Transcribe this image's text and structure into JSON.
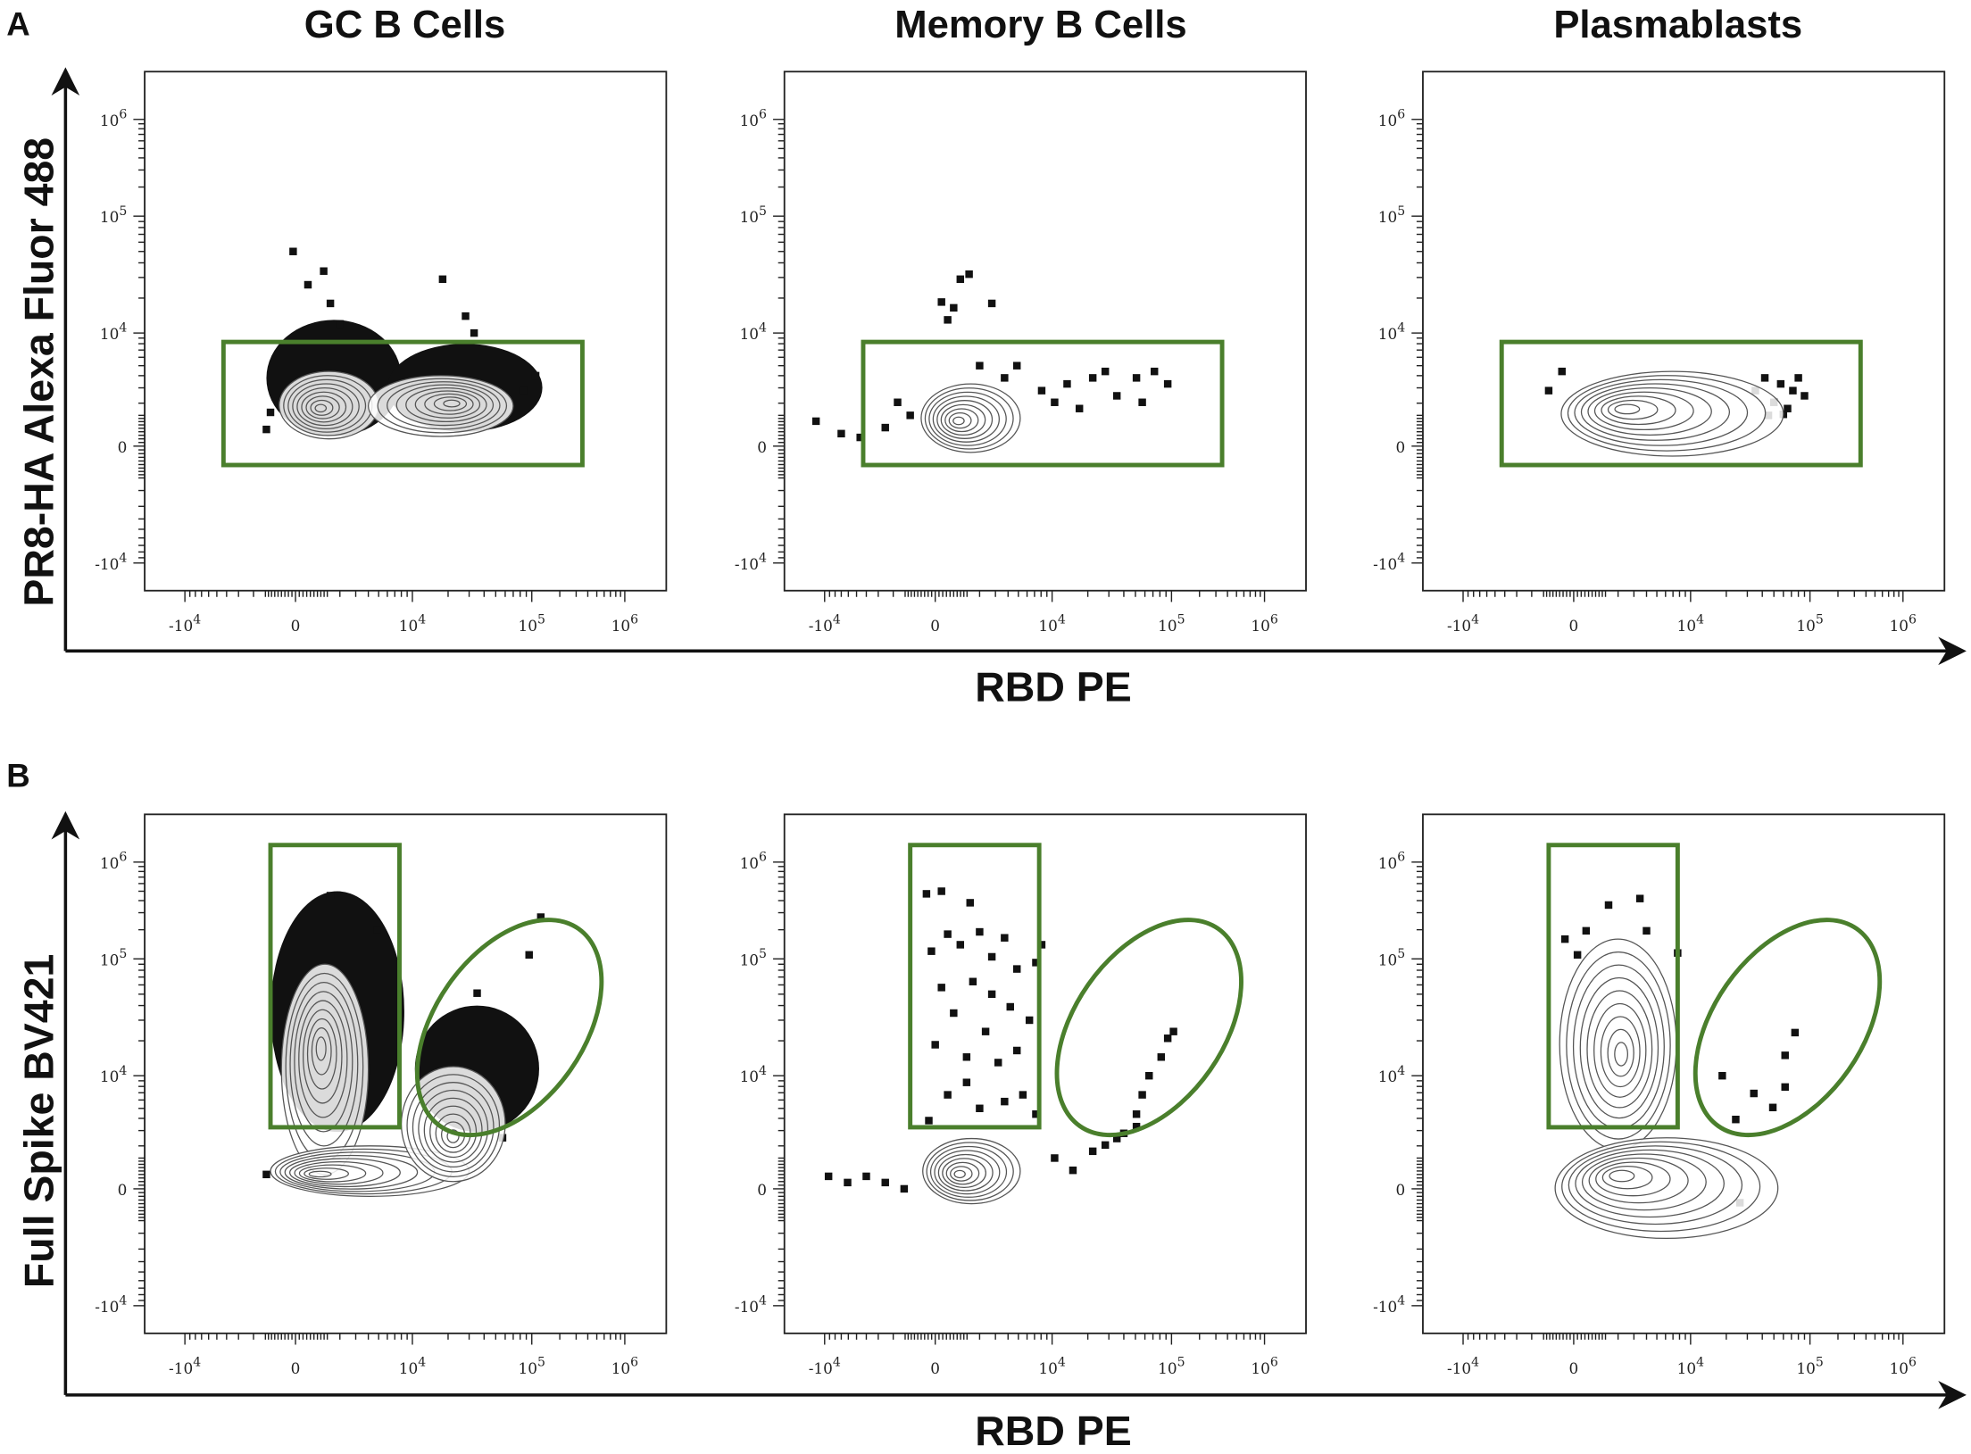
{
  "figure": {
    "panel_letters": [
      "A",
      "B"
    ],
    "column_titles": [
      "GC B Cells",
      "Memory B Cells",
      "Plasmablasts"
    ],
    "row_a_ylabel": "PR8-HA Alexa Fluor 488",
    "row_b_ylabel": "Full Spike BV421",
    "xlabel": "RBD PE",
    "gate_color": "#4a7f2c",
    "contour_color": "#555555",
    "dot_color": "#111111"
  },
  "chart_data": [
    {
      "type": "scatter",
      "subtype": "contour-with-outliers",
      "row": "A",
      "title": "GC B Cells",
      "xlabel": "RBD PE",
      "ylabel": "PR8-HA Alexa Fluor 488",
      "scale": "biexponential",
      "xticks": [
        "-10^4",
        "0",
        "10^4",
        "10^5",
        "10^6"
      ],
      "yticks": [
        "10^6",
        "10^5",
        "10^4",
        "0",
        "-10^4"
      ],
      "gates": [
        {
          "shape": "rectangle",
          "x": [
            -4300,
            350000
          ],
          "y": [
            -770,
            8300
          ]
        }
      ],
      "dense_regions": [
        {
          "x": [
            -1300,
            8000
          ],
          "y": [
            400,
            13000
          ]
        },
        {
          "x": [
            6000,
            130000
          ],
          "y": [
            600,
            8000
          ]
        }
      ],
      "populations": [
        {
          "peak": [
            1000,
            1700
          ],
          "x": [
            -700,
            5000
          ],
          "y": [
            300,
            4400
          ]
        },
        {
          "peak": [
            22000,
            2000
          ],
          "x": [
            4000,
            70000
          ],
          "y": [
            400,
            4000
          ]
        }
      ],
      "points": [
        [
          -100,
          50000
        ],
        [
          1180,
          34000
        ],
        [
          500,
          26000
        ],
        [
          18000,
          29000
        ],
        [
          1500,
          18000
        ],
        [
          28000,
          14000
        ],
        [
          2000,
          12000
        ],
        [
          33000,
          10000
        ],
        [
          110000,
          4000
        ],
        [
          85000,
          2800
        ],
        [
          -1100,
          1500
        ],
        [
          -1300,
          700
        ]
      ]
    },
    {
      "type": "scatter",
      "subtype": "contour-with-outliers",
      "row": "A",
      "title": "Memory B Cells",
      "xlabel": "RBD PE",
      "ylabel": "PR8-HA Alexa Fluor 488",
      "scale": "biexponential",
      "xticks": [
        "-10^4",
        "0",
        "10^4",
        "10^5",
        "10^6"
      ],
      "yticks": [
        "10^6",
        "10^5",
        "10^4",
        "0",
        "-10^4"
      ],
      "gates": [
        {
          "shape": "rectangle",
          "x": [
            -4300,
            350000
          ],
          "y": [
            -770,
            8300
          ]
        }
      ],
      "dense_regions": [],
      "populations": [
        {
          "peak": [
            900,
            1070
          ],
          "x": [
            -600,
            5200
          ],
          "y": [
            -250,
            3300
          ]
        }
      ],
      "points": [
        [
          -12000,
          1070
        ],
        [
          -7000,
          520
        ],
        [
          -4600,
          360
        ],
        [
          -2500,
          780
        ],
        [
          -1750,
          2050
        ],
        [
          -1100,
          1350
        ],
        [
          250,
          18500
        ],
        [
          500,
          13000
        ],
        [
          750,
          16500
        ],
        [
          1040,
          29000
        ],
        [
          1450,
          32000
        ],
        [
          2750,
          18000
        ],
        [
          3700,
          3800
        ],
        [
          4850,
          5000
        ],
        [
          8100,
          2800
        ],
        [
          13400,
          3300
        ],
        [
          22000,
          3800
        ],
        [
          35000,
          2450
        ],
        [
          51000,
          3800
        ],
        [
          72000,
          4400
        ],
        [
          93000,
          3300
        ],
        [
          10500,
          2050
        ],
        [
          17000,
          1700
        ],
        [
          28000,
          4400
        ],
        [
          57000,
          2050
        ],
        [
          2000,
          5000
        ]
      ]
    },
    {
      "type": "scatter",
      "subtype": "contour-with-outliers",
      "row": "A",
      "title": "Plasmablasts",
      "xlabel": "RBD PE",
      "ylabel": "PR8-HA Alexa Fluor 488",
      "scale": "biexponential",
      "xticks": [
        "-10^4",
        "0",
        "10^4",
        "10^5",
        "10^6"
      ],
      "yticks": [
        "10^6",
        "10^5",
        "10^4",
        "0",
        "-10^4"
      ],
      "gates": [
        {
          "shape": "rectangle",
          "x": [
            -4300,
            350000
          ],
          "y": [
            -770,
            8300
          ]
        }
      ],
      "dense_regions": [],
      "populations": [
        {
          "peak": [
            2200,
            1700
          ],
          "x": [
            -530,
            60000
          ],
          "y": [
            -400,
            4400
          ]
        }
      ],
      "points": [
        [
          -1100,
          2800
        ],
        [
          -500,
          4400
        ],
        [
          35000,
          2800
        ],
        [
          42000,
          3800
        ],
        [
          50000,
          2050
        ],
        [
          57000,
          3300
        ],
        [
          65000,
          1700
        ],
        [
          72000,
          2800
        ],
        [
          80000,
          3800
        ],
        [
          90000,
          2450
        ],
        [
          60000,
          1400
        ],
        [
          45000,
          1350
        ]
      ]
    },
    {
      "type": "scatter",
      "subtype": "contour-with-outliers",
      "row": "B",
      "title": "GC B Cells",
      "xlabel": "RBD PE",
      "ylabel": "Full Spike BV421",
      "scale": "biexponential",
      "xticks": [
        "-10^4",
        "0",
        "10^4",
        "10^5",
        "10^6"
      ],
      "yticks": [
        "10^6",
        "10^5",
        "10^4",
        "0",
        "-10^4"
      ],
      "gates": [
        {
          "shape": "rectangle",
          "x": [
            -1100,
            7700
          ],
          "y": [
            3250,
            1500000
          ]
        },
        {
          "shape": "ellipse",
          "center": [
            65000,
            26000
          ],
          "semi_axes_decades": [
            0.63,
            1.02
          ],
          "angle_deg": 35
        }
      ],
      "dense_regions": [
        {
          "x": [
            -1100,
            8500
          ],
          "y": [
            2900,
            500000
          ]
        },
        {
          "x": [
            10500,
            120000
          ],
          "y": [
            2900,
            40000
          ]
        }
      ],
      "populations": [
        {
          "peak": [
            1040,
            18000
          ],
          "x": [
            -600,
            4000
          ],
          "y": [
            600,
            90000
          ]
        },
        {
          "peak": [
            750,
            600
          ],
          "x": [
            -1100,
            30000
          ],
          "y": [
            -300,
            2000
          ]
        },
        {
          "peak": [
            22000,
            2500
          ],
          "x": [
            8000,
            60000
          ],
          "y": [
            300,
            12000
          ]
        }
      ],
      "points": [
        [
          1500,
          450000
        ],
        [
          4850,
          200000
        ],
        [
          125000,
          270000
        ],
        [
          95000,
          110000
        ],
        [
          35000,
          51000
        ],
        [
          57000,
          2500
        ],
        [
          -1300,
          600
        ]
      ]
    },
    {
      "type": "scatter",
      "subtype": "contour-with-outliers",
      "row": "B",
      "title": "Memory B Cells",
      "xlabel": "RBD PE",
      "ylabel": "Full Spike BV421",
      "scale": "biexponential",
      "xticks": [
        "-10^4",
        "0",
        "10^4",
        "10^5",
        "10^6"
      ],
      "yticks": [
        "10^6",
        "10^5",
        "10^4",
        "0",
        "-10^4"
      ],
      "gates": [
        {
          "shape": "rectangle",
          "x": [
            -1100,
            7700
          ],
          "y": [
            3250,
            1500000
          ]
        },
        {
          "shape": "ellipse",
          "center": [
            65000,
            26000
          ],
          "semi_axes_decades": [
            0.63,
            1.02
          ],
          "angle_deg": 35
        }
      ],
      "dense_regions": [],
      "populations": [
        {
          "peak": [
            950,
            600
          ],
          "x": [
            -530,
            5200
          ],
          "y": [
            -600,
            2450
          ]
        }
      ],
      "points": [
        [
          -370,
          470000
        ],
        [
          250,
          500000
        ],
        [
          1500,
          380000
        ],
        [
          500,
          180000
        ],
        [
          -160,
          120000
        ],
        [
          1040,
          140000
        ],
        [
          2000,
          190000
        ],
        [
          3700,
          165000
        ],
        [
          4850,
          82000
        ],
        [
          7200,
          93000
        ],
        [
          250,
          57000
        ],
        [
          1640,
          64000
        ],
        [
          2750,
          50000
        ],
        [
          4200,
          39000
        ],
        [
          750,
          34500
        ],
        [
          2350,
          24000
        ],
        [
          6300,
          30000
        ],
        [
          0,
          18500
        ],
        [
          1330,
          14500
        ],
        [
          3200,
          13000
        ],
        [
          4850,
          16500
        ],
        [
          500,
          6700
        ],
        [
          2000,
          5000
        ],
        [
          3700,
          5800
        ],
        [
          5500,
          6700
        ],
        [
          -270,
          3800
        ],
        [
          7200,
          4400
        ],
        [
          1330,
          8700
        ],
        [
          8100,
          140000
        ],
        [
          2750,
          105000
        ],
        [
          -9200,
          520
        ],
        [
          -6100,
          260
        ],
        [
          -4000,
          520
        ],
        [
          -2500,
          260
        ],
        [
          -1400,
          0
        ],
        [
          10500,
          1350
        ],
        [
          15000,
          780
        ],
        [
          22000,
          1700
        ],
        [
          28000,
          2050
        ],
        [
          40000,
          2800
        ],
        [
          51000,
          4400
        ],
        [
          57000,
          6700
        ],
        [
          65000,
          10000
        ],
        [
          82000,
          14500
        ],
        [
          93000,
          21000
        ],
        [
          105000,
          24000
        ],
        [
          51000,
          3300
        ],
        [
          35000,
          2450
        ]
      ]
    },
    {
      "type": "scatter",
      "subtype": "contour-with-outliers",
      "row": "B",
      "title": "Plasmablasts",
      "xlabel": "RBD PE",
      "ylabel": "Full Spike BV421",
      "scale": "biexponential",
      "xticks": [
        "-10^4",
        "0",
        "10^4",
        "10^5",
        "10^6"
      ],
      "yticks": [
        "10^6",
        "10^5",
        "10^4",
        "0",
        "-10^4"
      ],
      "gates": [
        {
          "shape": "rectangle",
          "x": [
            -1100,
            7700
          ],
          "y": [
            3250,
            1500000
          ]
        },
        {
          "shape": "ellipse",
          "center": [
            65000,
            26000
          ],
          "semi_axes_decades": [
            0.63,
            1.02
          ],
          "angle_deg": 35
        }
      ],
      "dense_regions": [],
      "populations": [
        {
          "peak": [
            2200,
            15000
          ],
          "x": [
            -600,
            7500
          ],
          "y": [
            1800,
            160000
          ]
        },
        {
          "peak": [
            1900,
            600
          ],
          "x": [
            -800,
            54000
          ],
          "y": [
            -2300,
            2500
          ]
        }
      ],
      "points": [
        [
          -370,
          160000
        ],
        [
          500,
          195000
        ],
        [
          1500,
          360000
        ],
        [
          3450,
          420000
        ],
        [
          4000,
          195000
        ],
        [
          7700,
          115000
        ],
        [
          150,
          110000
        ],
        [
          75000,
          23500
        ],
        [
          62000,
          15000
        ],
        [
          18500,
          10000
        ],
        [
          34000,
          6900
        ],
        [
          49000,
          5100
        ],
        [
          24000,
          3900
        ],
        [
          62000,
          7900
        ],
        [
          26000,
          -560
        ]
      ]
    }
  ]
}
